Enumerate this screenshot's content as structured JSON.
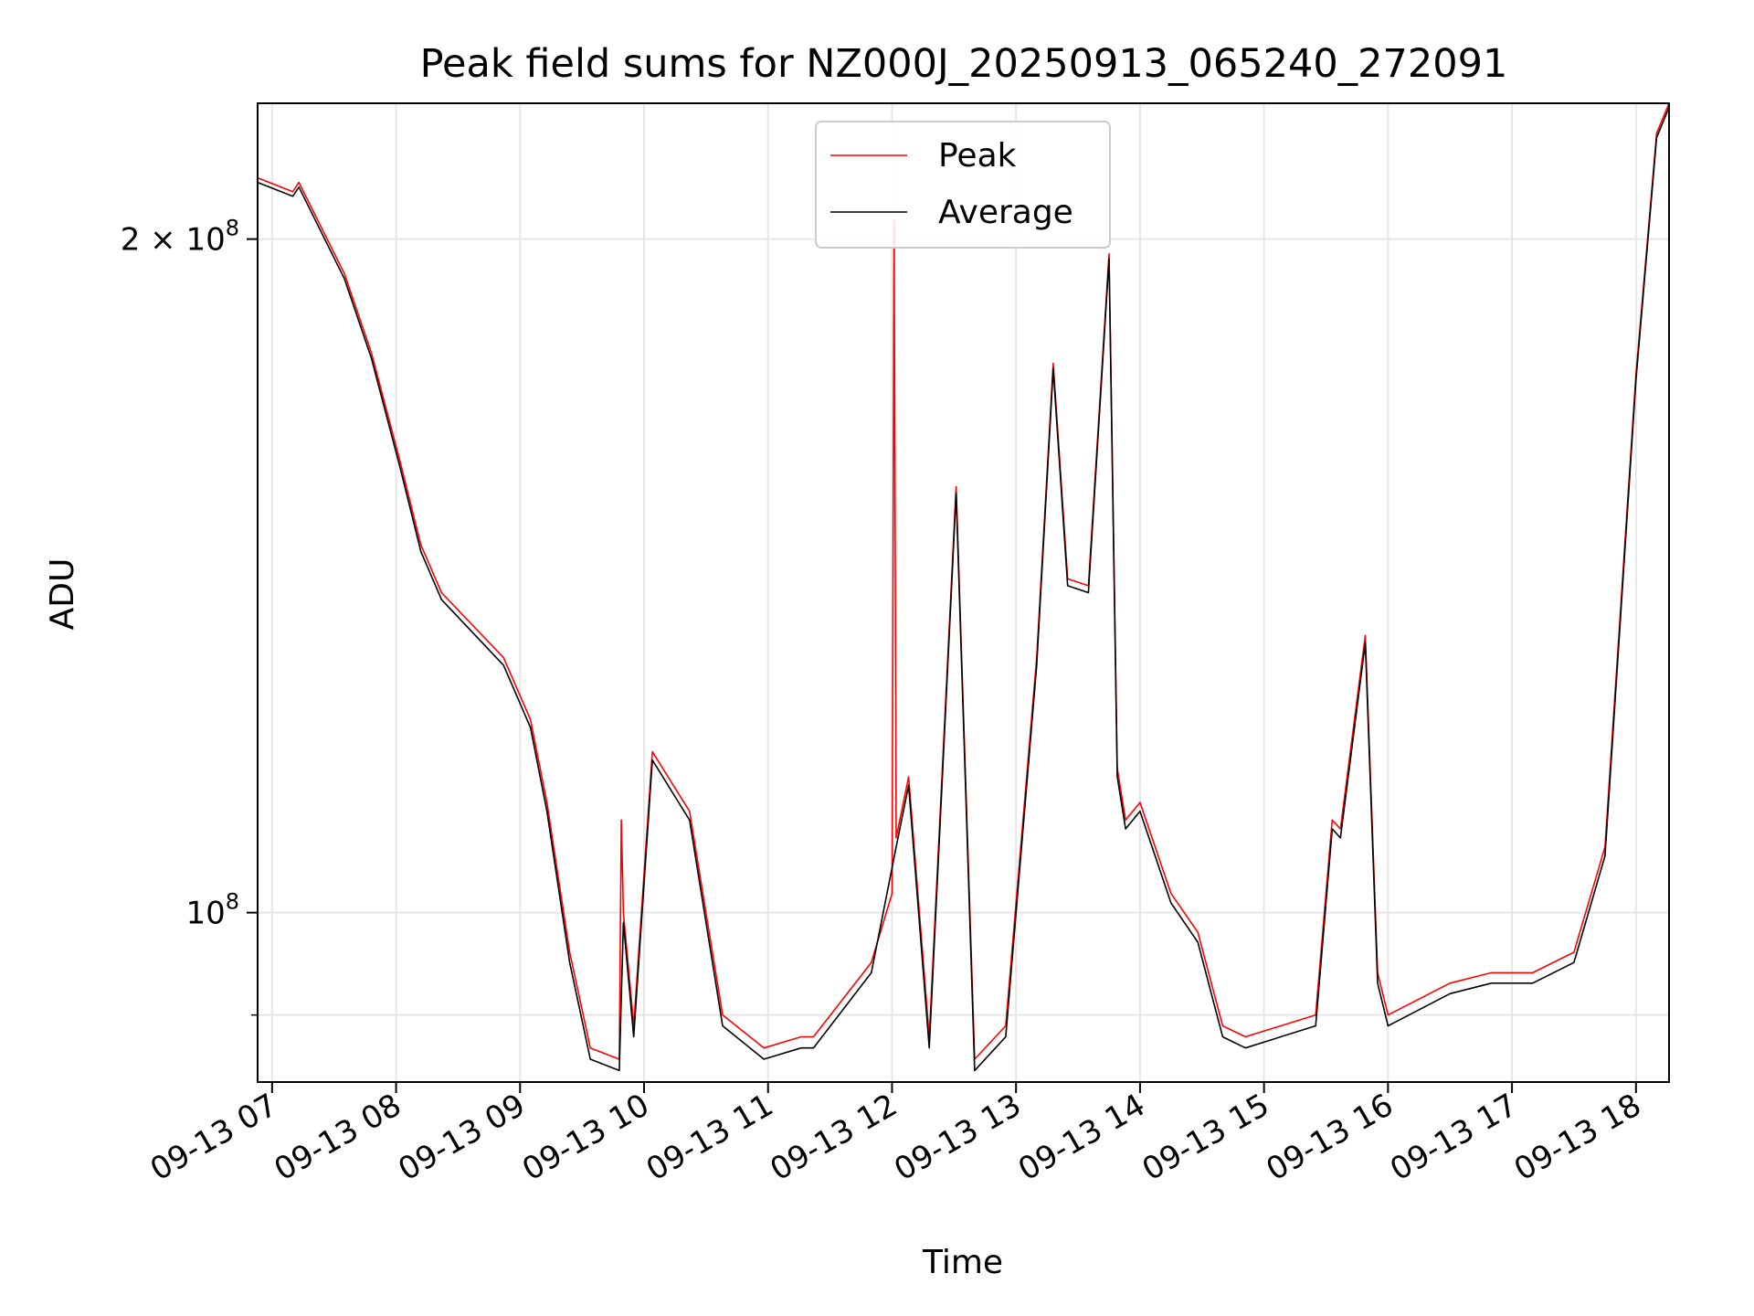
{
  "chart_data": {
    "type": "line",
    "title": "Peak field sums for NZ000J_20250913_065240_272091",
    "xlabel": "Time",
    "ylabel": "ADU",
    "x_axis": {
      "type": "time",
      "min": "2025-09-13T06:53",
      "max": "2025-09-13T18:16"
    },
    "y_axis": {
      "scale": "log",
      "min": 84000000,
      "max": 230000000
    },
    "x_tick_labels": [
      "09-13 07",
      "09-13 08",
      "09-13 09",
      "09-13 10",
      "09-13 11",
      "09-13 12",
      "09-13 13",
      "09-13 14",
      "09-13 15",
      "09-13 16",
      "09-13 17",
      "09-13 18"
    ],
    "y_tick_labels": [
      {
        "value": 200000000,
        "mantissa": "2",
        "base": "10",
        "exponent": "8"
      },
      {
        "value": 100000000,
        "mantissa": "",
        "base": "10",
        "exponent": "8"
      }
    ],
    "grid": true,
    "legend": {
      "location": "upper center",
      "entries": [
        "Peak",
        "Average"
      ]
    },
    "series": [
      {
        "name": "Peak",
        "color": "#ff0000",
        "x": [
          "2025-09-13T06:53",
          "2025-09-13T07:10",
          "2025-09-13T07:13",
          "2025-09-13T07:35",
          "2025-09-13T07:48",
          "2025-09-13T08:02",
          "2025-09-13T08:12",
          "2025-09-13T08:22",
          "2025-09-13T08:52",
          "2025-09-13T09:05",
          "2025-09-13T09:13",
          "2025-09-13T09:24",
          "2025-09-13T09:34",
          "2025-09-13T09:48",
          "2025-09-13T09:49",
          "2025-09-13T09:50",
          "2025-09-13T09:55",
          "2025-09-13T10:04",
          "2025-09-13T10:22",
          "2025-09-13T10:38",
          "2025-09-13T10:58",
          "2025-09-13T11:16",
          "2025-09-13T11:22",
          "2025-09-13T11:50",
          "2025-09-13T12:00",
          "2025-09-13T12:01",
          "2025-09-13T12:02",
          "2025-09-13T12:08",
          "2025-09-13T12:18",
          "2025-09-13T12:31",
          "2025-09-13T12:40",
          "2025-09-13T12:55",
          "2025-09-13T13:10",
          "2025-09-13T13:18",
          "2025-09-13T13:25",
          "2025-09-13T13:35",
          "2025-09-13T13:45",
          "2025-09-13T13:49",
          "2025-09-13T13:53",
          "2025-09-13T14:00",
          "2025-09-13T14:15",
          "2025-09-13T14:28",
          "2025-09-13T14:40",
          "2025-09-13T14:51",
          "2025-09-13T15:25",
          "2025-09-13T15:33",
          "2025-09-13T15:37",
          "2025-09-13T15:49",
          "2025-09-13T15:55",
          "2025-09-13T16:00",
          "2025-09-13T16:30",
          "2025-09-13T16:50",
          "2025-09-13T17:10",
          "2025-09-13T17:30",
          "2025-09-13T17:45",
          "2025-09-13T18:00",
          "2025-09-13T18:10",
          "2025-09-13T18:16"
        ],
        "y": [
          213000000,
          210000000,
          212000000,
          193000000,
          178000000,
          159000000,
          146000000,
          139000000,
          130000000,
          122000000,
          112000000,
          96000000,
          87000000,
          86000000,
          110000000,
          100000000,
          89000000,
          118000000,
          111000000,
          90000000,
          87000000,
          88000000,
          88000000,
          95000000,
          102000000,
          204000000,
          108000000,
          115000000,
          88000000,
          155000000,
          86000000,
          89000000,
          130000000,
          176000000,
          141000000,
          140000000,
          197000000,
          116000000,
          110000000,
          112000000,
          102000000,
          98000000,
          89000000,
          88000000,
          90000000,
          110000000,
          109000000,
          133000000,
          94000000,
          90000000,
          93000000,
          94000000,
          94000000,
          96000000,
          107000000,
          174000000,
          223000000,
          230000000
        ]
      },
      {
        "name": "Average",
        "color": "#000000",
        "x": [
          "2025-09-13T06:53",
          "2025-09-13T07:10",
          "2025-09-13T07:13",
          "2025-09-13T07:35",
          "2025-09-13T07:48",
          "2025-09-13T08:02",
          "2025-09-13T08:12",
          "2025-09-13T08:22",
          "2025-09-13T08:52",
          "2025-09-13T09:05",
          "2025-09-13T09:13",
          "2025-09-13T09:24",
          "2025-09-13T09:34",
          "2025-09-13T09:48",
          "2025-09-13T09:50",
          "2025-09-13T09:55",
          "2025-09-13T10:04",
          "2025-09-13T10:22",
          "2025-09-13T10:38",
          "2025-09-13T10:58",
          "2025-09-13T11:16",
          "2025-09-13T11:22",
          "2025-09-13T11:50",
          "2025-09-13T12:02",
          "2025-09-13T12:08",
          "2025-09-13T12:18",
          "2025-09-13T12:31",
          "2025-09-13T12:40",
          "2025-09-13T12:55",
          "2025-09-13T13:10",
          "2025-09-13T13:18",
          "2025-09-13T13:25",
          "2025-09-13T13:35",
          "2025-09-13T13:45",
          "2025-09-13T13:49",
          "2025-09-13T13:53",
          "2025-09-13T14:00",
          "2025-09-13T14:15",
          "2025-09-13T14:28",
          "2025-09-13T14:40",
          "2025-09-13T14:51",
          "2025-09-13T15:25",
          "2025-09-13T15:33",
          "2025-09-13T15:37",
          "2025-09-13T15:49",
          "2025-09-13T15:55",
          "2025-09-13T16:00",
          "2025-09-13T16:30",
          "2025-09-13T16:50",
          "2025-09-13T17:10",
          "2025-09-13T17:30",
          "2025-09-13T17:45",
          "2025-09-13T18:00",
          "2025-09-13T18:10",
          "2025-09-13T18:16"
        ],
        "y": [
          212000000,
          209000000,
          211000000,
          192000000,
          177000000,
          158000000,
          145000000,
          138000000,
          129000000,
          121000000,
          111000000,
          95000000,
          86000000,
          85000000,
          99000000,
          88000000,
          117000000,
          110000000,
          89000000,
          86000000,
          87000000,
          87000000,
          94000000,
          107000000,
          114000000,
          87000000,
          154000000,
          85000000,
          88000000,
          129000000,
          175000000,
          140000000,
          139000000,
          196000000,
          115000000,
          109000000,
          111000000,
          101000000,
          97000000,
          88000000,
          87000000,
          89000000,
          109000000,
          108000000,
          132000000,
          93000000,
          89000000,
          92000000,
          93000000,
          93000000,
          95000000,
          106000000,
          173000000,
          222000000,
          229000000
        ]
      }
    ]
  }
}
